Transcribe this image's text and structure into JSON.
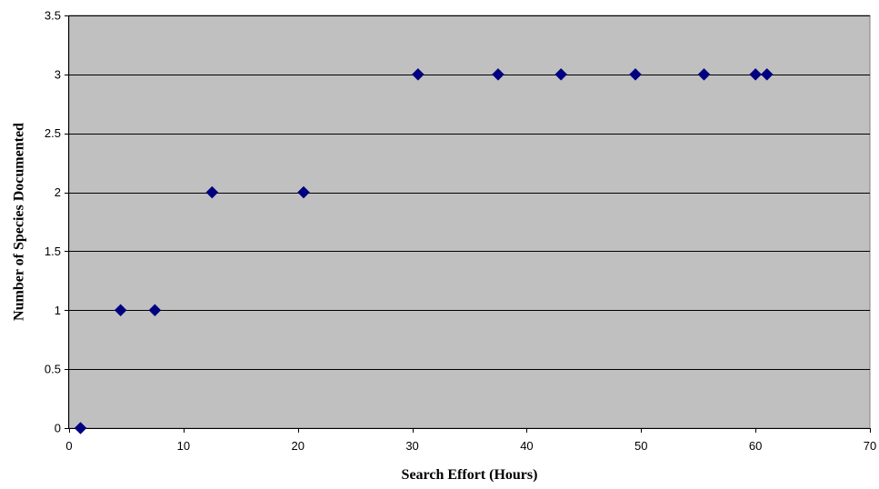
{
  "chart_data": {
    "type": "scatter",
    "title": "",
    "xlabel": "Search Effort  (Hours)",
    "ylabel": "Number of Species Documented",
    "xlim": [
      0,
      70
    ],
    "ylim": [
      0,
      3.5
    ],
    "x_ticks": [
      0,
      10,
      20,
      30,
      40,
      50,
      60,
      70
    ],
    "y_ticks": [
      0,
      0.5,
      1,
      1.5,
      2,
      2.5,
      3,
      3.5
    ],
    "x_tick_labels": [
      "0",
      "10",
      "20",
      "30",
      "40",
      "50",
      "60",
      "70"
    ],
    "y_tick_labels": [
      "0",
      "0.5",
      "1",
      "1.5",
      "2",
      "2.5",
      "3",
      "3.5"
    ],
    "grid": "horizontal",
    "legend": "none",
    "series": [
      {
        "marker": "diamond",
        "color": "#000080",
        "points": [
          {
            "x": 1,
            "y": 0
          },
          {
            "x": 4.5,
            "y": 1
          },
          {
            "x": 7.5,
            "y": 1
          },
          {
            "x": 12.5,
            "y": 2
          },
          {
            "x": 20.5,
            "y": 2
          },
          {
            "x": 30.5,
            "y": 3
          },
          {
            "x": 37.5,
            "y": 3
          },
          {
            "x": 43,
            "y": 3
          },
          {
            "x": 49.5,
            "y": 3
          },
          {
            "x": 55.5,
            "y": 3
          },
          {
            "x": 60,
            "y": 3
          },
          {
            "x": 61,
            "y": 3
          }
        ]
      }
    ],
    "colors": {
      "plot_background": "#c0c0c0",
      "gridline": "#000000",
      "marker": "#000080"
    }
  }
}
